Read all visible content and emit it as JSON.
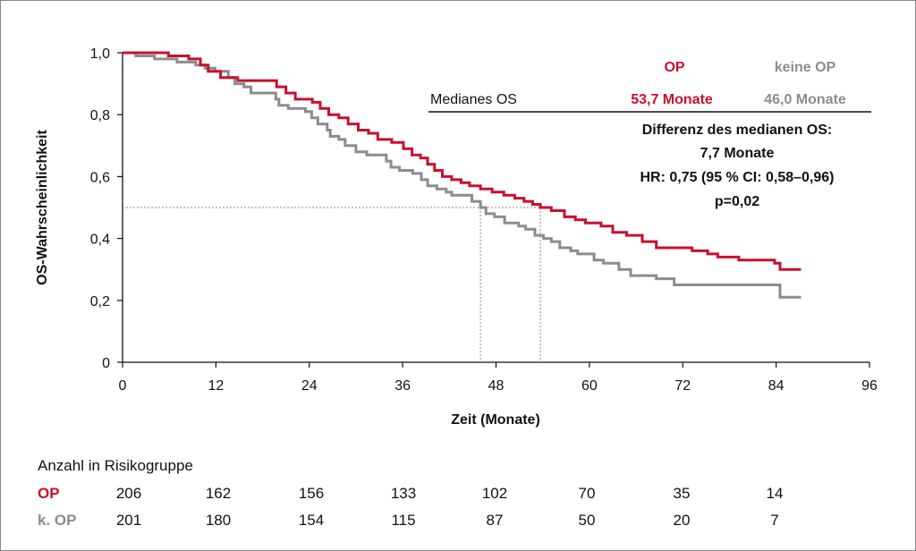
{
  "chart_data": {
    "type": "line",
    "subtype": "kaplan-meier-step",
    "xlabel": "Zeit (Monate)",
    "ylabel": "OS-Wahrscheinlichkeit",
    "xlim": [
      0,
      96
    ],
    "ylim": [
      0,
      1
    ],
    "x_ticks": [
      "0",
      "12",
      "24",
      "36",
      "48",
      "60",
      "72",
      "84",
      "96"
    ],
    "x_tick_values": [
      0,
      12,
      24,
      36,
      48,
      60,
      72,
      84,
      96
    ],
    "y_ticks": [
      "0",
      "0,2",
      "0,4",
      "0,6",
      "0,8",
      "1,0"
    ],
    "y_tick_values": [
      0,
      0.2,
      0.4,
      0.6,
      0.8,
      1.0
    ],
    "grid": false,
    "series": [
      {
        "name": "OP",
        "color": "#c8102e",
        "points": [
          [
            0,
            1.0
          ],
          [
            5.9,
            1.0
          ],
          [
            5.9,
            0.99
          ],
          [
            8.5,
            0.99
          ],
          [
            8.5,
            0.98
          ],
          [
            10,
            0.98
          ],
          [
            10,
            0.96
          ],
          [
            11,
            0.96
          ],
          [
            11,
            0.94
          ],
          [
            12.6,
            0.94
          ],
          [
            12.6,
            0.92
          ],
          [
            14.8,
            0.92
          ],
          [
            14.8,
            0.91
          ],
          [
            19.8,
            0.91
          ],
          [
            19.8,
            0.89
          ],
          [
            21,
            0.89
          ],
          [
            21,
            0.87
          ],
          [
            22.2,
            0.87
          ],
          [
            22.2,
            0.85
          ],
          [
            24.4,
            0.85
          ],
          [
            24.4,
            0.84
          ],
          [
            25.4,
            0.84
          ],
          [
            25.4,
            0.82
          ],
          [
            26.5,
            0.82
          ],
          [
            26.5,
            0.8
          ],
          [
            27.8,
            0.8
          ],
          [
            27.8,
            0.79
          ],
          [
            29,
            0.79
          ],
          [
            29,
            0.77
          ],
          [
            30.3,
            0.77
          ],
          [
            30.3,
            0.75
          ],
          [
            31.6,
            0.75
          ],
          [
            31.6,
            0.74
          ],
          [
            32.8,
            0.74
          ],
          [
            32.8,
            0.72
          ],
          [
            34.6,
            0.72
          ],
          [
            34.6,
            0.71
          ],
          [
            36.1,
            0.71
          ],
          [
            36.1,
            0.69
          ],
          [
            37.2,
            0.69
          ],
          [
            37.2,
            0.67
          ],
          [
            38.3,
            0.67
          ],
          [
            38.3,
            0.66
          ],
          [
            39.2,
            0.66
          ],
          [
            39.2,
            0.64
          ],
          [
            40.1,
            0.64
          ],
          [
            40.1,
            0.62
          ],
          [
            41.1,
            0.62
          ],
          [
            41.1,
            0.6
          ],
          [
            42.3,
            0.6
          ],
          [
            42.3,
            0.59
          ],
          [
            43.5,
            0.59
          ],
          [
            43.5,
            0.58
          ],
          [
            44.6,
            0.58
          ],
          [
            44.6,
            0.57
          ],
          [
            46,
            0.57
          ],
          [
            46,
            0.56
          ],
          [
            47.5,
            0.56
          ],
          [
            47.5,
            0.55
          ],
          [
            49,
            0.55
          ],
          [
            49,
            0.54
          ],
          [
            50.4,
            0.54
          ],
          [
            50.4,
            0.53
          ],
          [
            51.6,
            0.53
          ],
          [
            51.6,
            0.52
          ],
          [
            52.7,
            0.52
          ],
          [
            52.7,
            0.51
          ],
          [
            53.7,
            0.51
          ],
          [
            53.7,
            0.5
          ],
          [
            55.1,
            0.5
          ],
          [
            55.1,
            0.49
          ],
          [
            56.8,
            0.49
          ],
          [
            56.8,
            0.47
          ],
          [
            58.2,
            0.47
          ],
          [
            58.2,
            0.46
          ],
          [
            59.5,
            0.46
          ],
          [
            59.5,
            0.45
          ],
          [
            61.5,
            0.45
          ],
          [
            61.5,
            0.44
          ],
          [
            63,
            0.44
          ],
          [
            63,
            0.42
          ],
          [
            64.8,
            0.42
          ],
          [
            64.8,
            0.41
          ],
          [
            66.8,
            0.41
          ],
          [
            66.8,
            0.39
          ],
          [
            68.6,
            0.39
          ],
          [
            68.6,
            0.37
          ],
          [
            70.3,
            0.37
          ],
          [
            70.3,
            0.37
          ],
          [
            73.2,
            0.37
          ],
          [
            73.2,
            0.36
          ],
          [
            75.2,
            0.36
          ],
          [
            75.2,
            0.35
          ],
          [
            76.5,
            0.35
          ],
          [
            76.5,
            0.34
          ],
          [
            79.2,
            0.34
          ],
          [
            79.2,
            0.33
          ],
          [
            79.6,
            0.33
          ],
          [
            79.6,
            0.33
          ],
          [
            83.8,
            0.33
          ],
          [
            83.8,
            0.32
          ],
          [
            84.5,
            0.32
          ],
          [
            84.5,
            0.3
          ],
          [
            87.2,
            0.3
          ]
        ]
      },
      {
        "name": "keine OP",
        "color": "#8c8c8c",
        "points": [
          [
            0,
            1.0
          ],
          [
            1.7,
            1.0
          ],
          [
            1.7,
            0.99
          ],
          [
            4.1,
            0.99
          ],
          [
            4.1,
            0.98
          ],
          [
            7,
            0.98
          ],
          [
            7,
            0.97
          ],
          [
            9.4,
            0.97
          ],
          [
            9.4,
            0.96
          ],
          [
            10.6,
            0.96
          ],
          [
            10.6,
            0.95
          ],
          [
            11.9,
            0.95
          ],
          [
            11.9,
            0.94
          ],
          [
            13.6,
            0.94
          ],
          [
            13.6,
            0.92
          ],
          [
            14.4,
            0.92
          ],
          [
            14.4,
            0.9
          ],
          [
            15.6,
            0.9
          ],
          [
            15.6,
            0.89
          ],
          [
            16.5,
            0.89
          ],
          [
            16.5,
            0.87
          ],
          [
            19.7,
            0.87
          ],
          [
            19.7,
            0.85
          ],
          [
            20.1,
            0.85
          ],
          [
            20.1,
            0.83
          ],
          [
            21.3,
            0.83
          ],
          [
            21.3,
            0.82
          ],
          [
            23.5,
            0.82
          ],
          [
            23.5,
            0.81
          ],
          [
            24.3,
            0.81
          ],
          [
            24.3,
            0.79
          ],
          [
            25.1,
            0.79
          ],
          [
            25.1,
            0.77
          ],
          [
            26.3,
            0.77
          ],
          [
            26.3,
            0.75
          ],
          [
            26.7,
            0.75
          ],
          [
            26.7,
            0.73
          ],
          [
            27.8,
            0.73
          ],
          [
            27.8,
            0.72
          ],
          [
            28.6,
            0.72
          ],
          [
            28.6,
            0.7
          ],
          [
            30,
            0.7
          ],
          [
            30,
            0.68
          ],
          [
            31.4,
            0.68
          ],
          [
            31.4,
            0.67
          ],
          [
            33.9,
            0.67
          ],
          [
            33.9,
            0.65
          ],
          [
            34.5,
            0.65
          ],
          [
            34.5,
            0.63
          ],
          [
            35.6,
            0.63
          ],
          [
            35.6,
            0.62
          ],
          [
            37.3,
            0.62
          ],
          [
            37.3,
            0.61
          ],
          [
            38.4,
            0.61
          ],
          [
            38.4,
            0.59
          ],
          [
            39.2,
            0.59
          ],
          [
            39.2,
            0.57
          ],
          [
            40.4,
            0.57
          ],
          [
            40.4,
            0.56
          ],
          [
            41.6,
            0.56
          ],
          [
            41.6,
            0.55
          ],
          [
            42.3,
            0.55
          ],
          [
            42.3,
            0.54
          ],
          [
            44.9,
            0.54
          ],
          [
            44.9,
            0.52
          ],
          [
            46,
            0.52
          ],
          [
            46,
            0.5
          ],
          [
            46.7,
            0.5
          ],
          [
            46.7,
            0.48
          ],
          [
            47.8,
            0.48
          ],
          [
            47.8,
            0.47
          ],
          [
            49.1,
            0.47
          ],
          [
            49.1,
            0.45
          ],
          [
            50.9,
            0.45
          ],
          [
            50.9,
            0.44
          ],
          [
            51.8,
            0.44
          ],
          [
            51.8,
            0.43
          ],
          [
            53,
            0.43
          ],
          [
            53,
            0.41
          ],
          [
            54.1,
            0.41
          ],
          [
            54.1,
            0.4
          ],
          [
            55.1,
            0.4
          ],
          [
            55.1,
            0.39
          ],
          [
            56.2,
            0.39
          ],
          [
            56.2,
            0.37
          ],
          [
            57.6,
            0.37
          ],
          [
            57.6,
            0.36
          ],
          [
            58.5,
            0.36
          ],
          [
            58.5,
            0.35
          ],
          [
            60.6,
            0.35
          ],
          [
            60.6,
            0.33
          ],
          [
            61.8,
            0.33
          ],
          [
            61.8,
            0.32
          ],
          [
            63.8,
            0.32
          ],
          [
            63.8,
            0.3
          ],
          [
            65.3,
            0.3
          ],
          [
            65.3,
            0.28
          ],
          [
            68.6,
            0.28
          ],
          [
            68.6,
            0.27
          ],
          [
            70.9,
            0.27
          ],
          [
            70.9,
            0.25
          ],
          [
            84.5,
            0.25
          ],
          [
            84.5,
            0.21
          ],
          [
            87.2,
            0.21
          ]
        ]
      }
    ],
    "median_x": [
      46.0,
      53.7
    ],
    "median_y": 0.5,
    "legend": {
      "col_op": "OP",
      "col_no_op": "keine OP",
      "row_label": "Medianes OS",
      "op_value": "53,7 Monate",
      "no_op_value": "46,0 Monate"
    },
    "stats": {
      "line1": "Differenz des medianen OS:",
      "line2": "7,7 Monate",
      "line3": "HR: 0,75 (95 % CI: 0,58–0,96)",
      "line4": "p=0,02"
    },
    "risk_table": {
      "title": "Anzahl in Risikogruppe",
      "rows": [
        {
          "label": "OP",
          "color": "#c8102e",
          "values": [
            "206",
            "162",
            "156",
            "133",
            "102",
            "70",
            "35",
            "14"
          ]
        },
        {
          "label": "k. OP",
          "color": "#8c8c8c",
          "values": [
            "201",
            "180",
            "154",
            "115",
            "87",
            "50",
            "20",
            "7"
          ]
        }
      ]
    }
  }
}
